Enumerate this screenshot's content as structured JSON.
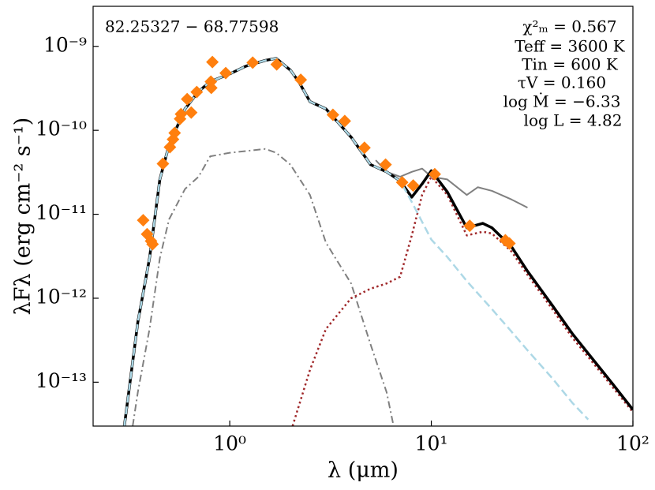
{
  "chart_data": {
    "type": "line",
    "xlabel": "λ (μm)",
    "ylabel": "λFλ (erg cm⁻² s⁻¹)",
    "annotations": [
      "82.25327 − 68.77598",
      "χ²ₘ = 0.567",
      "Teff = 3600 K",
      "Tin = 600 K",
      "τV = 0.160",
      "log Ṁ = −6.33",
      "log L = 4.82"
    ],
    "xscale": "log",
    "yscale": "log",
    "xlim": [
      0.21,
      100
    ],
    "ylim": [
      3e-14,
      3e-09
    ],
    "xticks": [
      {
        "value": 1,
        "label": "10⁰"
      },
      {
        "value": 10,
        "label": "10¹"
      },
      {
        "value": 100,
        "label": "10²"
      }
    ],
    "yticks": [
      {
        "value": 1e-13,
        "label": "10⁻¹³"
      },
      {
        "value": 1e-12,
        "label": "10⁻¹²"
      },
      {
        "value": 1e-11,
        "label": "10⁻¹¹"
      },
      {
        "value": 1e-10,
        "label": "10⁻¹⁰"
      },
      {
        "value": 1e-09,
        "label": "10⁻⁹"
      }
    ],
    "series": [
      {
        "style": "dashdot",
        "color": "#808080",
        "width": 2,
        "x": [
          0.33,
          0.35,
          0.4,
          0.45,
          0.5,
          0.6,
          0.7,
          0.8,
          1,
          1.5,
          1.7,
          2,
          2.5,
          3,
          4,
          5,
          6,
          6.5
        ],
        "values": [
          3e-14,
          7.6e-14,
          4.3e-13,
          3e-12,
          8.7e-12,
          2e-11,
          2.8e-11,
          4.9e-11,
          5.4e-11,
          6e-11,
          5.4e-11,
          3.9e-11,
          1.7e-11,
          4.6e-12,
          1.5e-12,
          2.8e-13,
          7.6e-14,
          3e-14
        ]
      },
      {
        "style": "dotted",
        "color": "#a0282a",
        "width": 2.5,
        "x": [
          2.05,
          2.5,
          3,
          4,
          5,
          6,
          7,
          8,
          9,
          10,
          12,
          15,
          18,
          20,
          25,
          30,
          40,
          50,
          60,
          80,
          100
        ],
        "values": [
          3e-14,
          1.4e-13,
          4.3e-13,
          1e-12,
          1.3e-12,
          1.5e-12,
          1.8e-12,
          5.6e-12,
          1.7e-11,
          2.8e-11,
          1.7e-11,
          5.6e-12,
          6.2e-12,
          5.9e-12,
          3.6e-12,
          1.9e-12,
          7.3e-13,
          3.4e-13,
          2e-13,
          8.5e-14,
          4.4e-14
        ]
      },
      {
        "style": "solid",
        "color": "#808080",
        "width": 2,
        "x": [
          5.3,
          6,
          7,
          8,
          9,
          10,
          12,
          15,
          17,
          20,
          25,
          30
        ],
        "values": [
          4.4e-11,
          3.2e-11,
          2.8e-11,
          3.2e-11,
          3.5e-11,
          2.8e-11,
          2.6e-11,
          1.7e-11,
          2.1e-11,
          1.9e-11,
          1.5e-11,
          1.2e-11
        ]
      },
      {
        "style": "solid",
        "color": "#000000",
        "width": 3.5,
        "x": [
          0.3,
          0.35,
          0.4,
          0.45,
          0.5,
          0.6,
          0.7,
          0.8,
          1,
          1.2,
          1.5,
          1.7,
          2,
          2.2,
          2.5,
          3,
          4,
          5,
          6,
          7,
          8,
          9,
          10,
          12,
          15,
          18,
          20,
          25,
          30,
          40,
          50,
          60,
          80,
          100
        ],
        "values": [
          3e-14,
          5.2e-13,
          3e-12,
          2.6e-11,
          6.7e-11,
          1.8e-10,
          2.9e-10,
          3.8e-10,
          4.7e-10,
          5.8e-10,
          6.8e-10,
          7.2e-10,
          5.2e-10,
          3.8e-10,
          2.2e-10,
          1.8e-10,
          8.3e-11,
          3.9e-11,
          3.2e-11,
          2.5e-11,
          1.6e-11,
          2.3e-11,
          3.3e-11,
          1.85e-11,
          6.9e-12,
          7.8e-12,
          6.9e-12,
          4.1e-12,
          2.1e-12,
          8.1e-13,
          3.8e-13,
          2.2e-13,
          9.3e-14,
          4.7e-14
        ]
      },
      {
        "style": "dashed",
        "color": "#add8e6",
        "width": 2.5,
        "x": [
          0.3,
          0.35,
          0.4,
          0.45,
          0.5,
          0.6,
          0.7,
          0.8,
          1,
          1.2,
          1.5,
          1.7,
          2,
          2.2,
          2.5,
          3,
          4,
          5,
          6,
          7,
          8,
          10,
          12,
          15,
          20,
          25,
          30,
          40,
          50,
          60
        ],
        "values": [
          3e-14,
          5.2e-13,
          3e-12,
          2.6e-11,
          6.7e-11,
          1.8e-10,
          2.9e-10,
          3.8e-10,
          4.7e-10,
          5.8e-10,
          6.8e-10,
          7.2e-10,
          5.2e-10,
          3.8e-10,
          2.2e-10,
          1.8e-10,
          8.3e-11,
          3.9e-11,
          3.2e-11,
          2.5e-11,
          1.4e-11,
          5e-12,
          3.1e-12,
          1.6e-12,
          7.4e-13,
          4e-13,
          2.4e-13,
          1.1e-13,
          5.7e-14,
          3.6e-14
        ]
      },
      {
        "style": "markers",
        "color": "#ff7f0e",
        "x": [
          0.372,
          0.389,
          0.407,
          0.414,
          0.466,
          0.505,
          0.523,
          0.533,
          0.567,
          0.573,
          0.615,
          0.644,
          0.686,
          0.82,
          0.806,
          0.81,
          0.955,
          1.3,
          1.71,
          2.25,
          3.25,
          3.72,
          4.66,
          5.93,
          7.17,
          8.13,
          10.4,
          15.5,
          23.3,
          24.4
        ],
        "values": [
          8.5e-12,
          5.8e-12,
          4.8e-12,
          4.4e-12,
          4e-11,
          6.3e-11,
          7.8e-11,
          9.3e-11,
          1.37e-10,
          1.56e-10,
          2.35e-10,
          1.63e-10,
          2.86e-10,
          6.5e-10,
          3.8e-10,
          3.2e-10,
          4.8e-10,
          6.4e-10,
          6.1e-10,
          4e-10,
          1.53e-10,
          1.29e-10,
          6.2e-11,
          3.9e-11,
          2.4e-11,
          2.2e-11,
          3e-11,
          7.3e-12,
          4.9e-12,
          4.5e-12
        ]
      }
    ]
  }
}
